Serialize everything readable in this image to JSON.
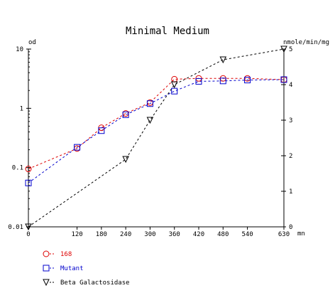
{
  "chart_data": {
    "type": "line",
    "title": "Minimal Medium",
    "x_unit": "mn",
    "x_ticks": [
      0,
      120,
      180,
      240,
      300,
      360,
      420,
      480,
      540,
      630
    ],
    "xlim": [
      0,
      630
    ],
    "y_left": {
      "label": "od",
      "scale": "log",
      "lim": [
        0.01,
        10
      ],
      "tick_values": [
        0.01,
        0.1,
        1,
        10
      ],
      "tick_labels": [
        "0.01",
        "0.1",
        "1",
        "10"
      ]
    },
    "y_right": {
      "label": "nmole/min/mg",
      "scale": "linear",
      "lim": [
        0,
        5
      ],
      "ticks": [
        0,
        1,
        2,
        3,
        4,
        5
      ]
    },
    "grid": false,
    "series": [
      {
        "name": "168",
        "axis": "left",
        "color": "#dd0000",
        "marker": "circle",
        "x": [
          0,
          120,
          180,
          240,
          300,
          360,
          420,
          480,
          540,
          630
        ],
        "values": [
          0.095,
          0.21,
          0.47,
          0.82,
          1.25,
          3.1,
          3.2,
          3.2,
          3.2,
          3.05
        ]
      },
      {
        "name": "Mutant",
        "axis": "left",
        "color": "#0000cc",
        "marker": "square",
        "x": [
          0,
          120,
          180,
          240,
          300,
          360,
          420,
          480,
          540,
          630
        ],
        "values": [
          0.055,
          0.22,
          0.42,
          0.78,
          1.2,
          1.95,
          2.85,
          2.9,
          3.0,
          3.05
        ]
      },
      {
        "name": "Beta Galactosidase",
        "axis": "right",
        "color": "#000000",
        "marker": "triangle-down",
        "x": [
          0,
          240,
          300,
          360,
          480,
          630
        ],
        "values": [
          0,
          1.9,
          3.0,
          4.0,
          4.7,
          5.0
        ]
      }
    ]
  }
}
